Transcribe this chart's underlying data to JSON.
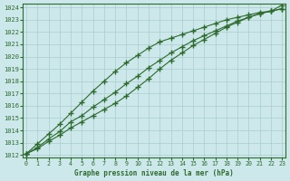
{
  "xlabel": "Graphe pression niveau de la mer (hPa)",
  "xlim": [
    -0.3,
    23.3
  ],
  "ylim": [
    1011.8,
    1024.3
  ],
  "yticks": [
    1012,
    1013,
    1014,
    1015,
    1016,
    1017,
    1018,
    1019,
    1020,
    1021,
    1022,
    1023,
    1024
  ],
  "xticks": [
    0,
    1,
    2,
    3,
    4,
    5,
    6,
    7,
    8,
    9,
    10,
    11,
    12,
    13,
    14,
    15,
    16,
    17,
    18,
    19,
    20,
    21,
    22,
    23
  ],
  "bg_color": "#cce8ea",
  "grid_color": "#aacccc",
  "line_color": "#2d6a2d",
  "series": [
    [
      1012.1,
      1012.6,
      1013.3,
      1013.9,
      1014.7,
      1015.2,
      1015.9,
      1016.5,
      1017.1,
      1017.8,
      1018.4,
      1019.1,
      1019.7,
      1020.3,
      1020.8,
      1021.3,
      1021.7,
      1022.1,
      1022.5,
      1022.9,
      1023.2,
      1023.5,
      1023.7,
      1023.9
    ],
    [
      1012.1,
      1012.9,
      1013.7,
      1014.5,
      1015.4,
      1016.3,
      1017.2,
      1018.0,
      1018.8,
      1019.5,
      1020.1,
      1020.7,
      1021.2,
      1021.5,
      1021.8,
      1022.1,
      1022.4,
      1022.7,
      1023.0,
      1023.2,
      1023.4,
      1023.6,
      1023.7,
      1023.9
    ],
    [
      1012.1,
      1012.5,
      1013.1,
      1013.6,
      1014.2,
      1014.7,
      1015.2,
      1015.7,
      1016.2,
      1016.8,
      1017.5,
      1018.2,
      1019.0,
      1019.7,
      1020.3,
      1020.9,
      1021.4,
      1021.9,
      1022.4,
      1022.8,
      1023.2,
      1023.5,
      1023.7,
      1024.2
    ]
  ]
}
